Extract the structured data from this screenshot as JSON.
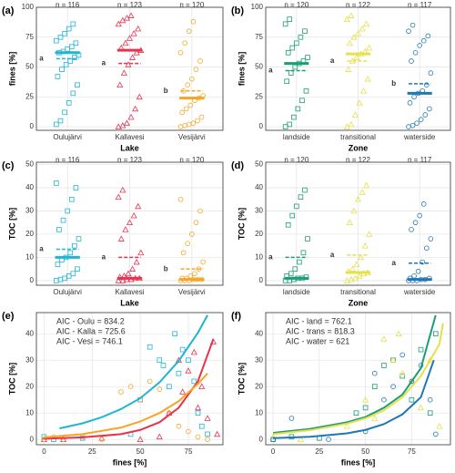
{
  "chart_data": [
    {
      "type": "strip",
      "panel": "(a)",
      "ylabel": "fines [%]",
      "xlabel": "Lake",
      "ylim": [
        -3,
        100
      ],
      "yticks": [
        0,
        25,
        50,
        75,
        100
      ],
      "grid": true,
      "categories": [
        "Oulujärvi",
        "Kallavesi",
        "Vesijärvi"
      ],
      "series": [
        {
          "color": "#1fb5d3",
          "marker": "square",
          "n_label": "n = 116",
          "letter": "a",
          "median": 62,
          "mean": 57,
          "values": [
            2,
            5,
            12,
            20,
            28,
            35,
            42,
            48,
            52,
            55,
            58,
            60,
            62,
            63,
            65,
            67,
            70,
            72,
            75,
            78,
            82,
            86
          ]
        },
        {
          "color": "#e8334f",
          "marker": "triangle",
          "n_label": "n = 123",
          "letter": "a",
          "median": 64,
          "mean": 53,
          "values": [
            0,
            1,
            3,
            8,
            15,
            25,
            35,
            45,
            52,
            58,
            62,
            64,
            66,
            70,
            74,
            78,
            82,
            86,
            89,
            91,
            93
          ]
        },
        {
          "color": "#f5a623",
          "marker": "circle",
          "n_label": "n = 120",
          "letter": "b",
          "median": 24,
          "mean": 30,
          "values": [
            0,
            1,
            2,
            3,
            5,
            8,
            12,
            15,
            18,
            22,
            24,
            26,
            30,
            35,
            40,
            48,
            55,
            62,
            70,
            80,
            88
          ]
        }
      ]
    },
    {
      "type": "strip",
      "panel": "(b)",
      "ylabel": "fines [%]",
      "xlabel": "Zone",
      "ylim": [
        -3,
        100
      ],
      "yticks": [
        0,
        25,
        50,
        75,
        100
      ],
      "grid": true,
      "categories": [
        "landside",
        "transitional",
        "waterside"
      ],
      "series": [
        {
          "color": "#1b9e77",
          "marker": "square",
          "n_label": "n = 120",
          "letter": "a",
          "median": 53,
          "mean": 47,
          "values": [
            0,
            2,
            8,
            15,
            22,
            30,
            38,
            45,
            50,
            53,
            55,
            58,
            62,
            66,
            70,
            75,
            80,
            86,
            90
          ]
        },
        {
          "color": "#e6e04a",
          "marker": "triangle",
          "n_label": "n = 122",
          "letter": "a",
          "median": 61,
          "mean": 55,
          "values": [
            0,
            2,
            10,
            20,
            30,
            40,
            48,
            55,
            58,
            61,
            63,
            66,
            70,
            75,
            78,
            82,
            86,
            90,
            93
          ]
        },
        {
          "color": "#1f78b4",
          "marker": "circle",
          "n_label": "n = 117",
          "letter": "b",
          "median": 28,
          "mean": 36,
          "values": [
            0,
            1,
            3,
            6,
            10,
            15,
            20,
            25,
            28,
            30,
            35,
            45,
            55,
            62,
            68,
            72,
            76,
            80,
            85
          ]
        }
      ]
    },
    {
      "type": "strip",
      "panel": "(c)",
      "ylabel": "TOC [%]",
      "xlabel": "Lake",
      "ylim": [
        -2,
        51
      ],
      "yticks": [
        0,
        10,
        20,
        30,
        40,
        50
      ],
      "grid": true,
      "categories": [
        "Oulujärvi",
        "Kallavesi",
        "Vesijärvi"
      ],
      "series": [
        {
          "color": "#1fb5d3",
          "marker": "square",
          "n_label": "n = 116",
          "letter": "a",
          "median": 10,
          "mean": 13.5,
          "values": [
            0,
            0.5,
            1,
            2,
            3,
            5,
            7,
            9,
            10,
            12,
            15,
            18,
            22,
            26,
            30,
            35,
            40,
            42
          ]
        },
        {
          "color": "#e8334f",
          "marker": "triangle",
          "n_label": "n = 123",
          "letter": "a",
          "median": 1,
          "mean": 10,
          "values": [
            0,
            0,
            0.5,
            0.5,
            1,
            1,
            1.5,
            2,
            3,
            5,
            8,
            12,
            18,
            22,
            25,
            28,
            32,
            36,
            39
          ]
        },
        {
          "color": "#f5a623",
          "marker": "circle",
          "n_label": "n = 120",
          "letter": "b",
          "median": 0.5,
          "mean": 5,
          "values": [
            0,
            0,
            0,
            0.5,
            0.5,
            0.5,
            1,
            1,
            2,
            3,
            5,
            8,
            12,
            16,
            20,
            25,
            30,
            35
          ]
        }
      ]
    },
    {
      "type": "strip",
      "panel": "(d)",
      "ylabel": "TOC [%]",
      "xlabel": "Zone",
      "ylim": [
        -2,
        51
      ],
      "yticks": [
        0,
        10,
        20,
        30,
        40,
        50
      ],
      "grid": true,
      "categories": [
        "landside",
        "transitional",
        "waterside"
      ],
      "series": [
        {
          "color": "#1b9e77",
          "marker": "square",
          "n_label": "n = 120",
          "letter": "a",
          "median": 1,
          "mean": 10,
          "values": [
            0,
            0,
            0.5,
            1,
            1,
            1.5,
            2,
            3,
            5,
            8,
            12,
            18,
            24,
            28,
            32,
            36,
            39
          ]
        },
        {
          "color": "#e6e04a",
          "marker": "triangle",
          "n_label": "n = 122",
          "letter": "a",
          "median": 3.5,
          "mean": 11,
          "values": [
            0,
            0.5,
            1,
            2,
            3,
            3.5,
            4,
            5,
            7,
            10,
            15,
            20,
            25,
            30,
            35,
            38,
            41
          ]
        },
        {
          "color": "#1f78b4",
          "marker": "circle",
          "n_label": "n = 117",
          "letter": "a",
          "median": 0.5,
          "mean": 7.5,
          "values": [
            0,
            0,
            0,
            0.5,
            0.5,
            1,
            1,
            2,
            4,
            8,
            14,
            18,
            22,
            25,
            28,
            33
          ]
        }
      ]
    },
    {
      "type": "scatter",
      "panel": "(e)",
      "ylabel": "TOC [%]",
      "xlabel": "fines [%]",
      "xlim": [
        -4,
        93
      ],
      "xticks": [
        0,
        25,
        50,
        75
      ],
      "ylim": [
        -2,
        48
      ],
      "yticks": [
        0,
        10,
        20,
        30,
        40
      ],
      "grid": true,
      "series": [
        {
          "color": "#1fb5d3",
          "marker": "square",
          "aic": "AIC - Oulu = 834.2",
          "x": [
            0,
            5,
            20,
            45,
            50,
            55,
            60,
            62,
            65,
            68,
            70,
            72,
            75,
            78,
            80,
            82,
            85
          ],
          "values": [
            1,
            0,
            0.5,
            2,
            15,
            35,
            30,
            28,
            20,
            40,
            25,
            34,
            30,
            22,
            10,
            5,
            2
          ],
          "curve_x": [
            8,
            10,
            20,
            30,
            40,
            50,
            60,
            70,
            80,
            85
          ],
          "curve_y": [
            4.2,
            4.5,
            6.1,
            8.4,
            11.5,
            15.6,
            21.6,
            29.7,
            40.4,
            47
          ]
        },
        {
          "color": "#e8334f",
          "marker": "triangle",
          "aic": "AIC - Kalla = 725.6",
          "x": [
            0,
            10,
            30,
            50,
            60,
            65,
            70,
            72,
            75,
            78,
            80,
            82,
            85,
            88,
            90
          ],
          "values": [
            0,
            0,
            0.5,
            0,
            1,
            10,
            30,
            18,
            26,
            33,
            12,
            20,
            8,
            37,
            2
          ],
          "curve_x": [
            0,
            20,
            40,
            50,
            60,
            70,
            80,
            88
          ],
          "curve_y": [
            0.3,
            0.8,
            2,
            3.6,
            6.5,
            12,
            22,
            38
          ]
        },
        {
          "color": "#f5a623",
          "marker": "circle",
          "aic": "AIC - Vesi = 746.1",
          "x": [
            0,
            5,
            10,
            20,
            30,
            40,
            45,
            50,
            55,
            60,
            65,
            70,
            75,
            80,
            85
          ],
          "values": [
            0,
            1,
            0,
            1,
            0,
            18,
            20,
            15,
            22,
            19,
            10,
            5,
            3,
            1,
            0
          ],
          "curve_x": [
            0,
            20,
            40,
            50,
            60,
            70,
            80,
            85
          ],
          "curve_y": [
            0.8,
            2,
            4.5,
            6.8,
            10,
            14.5,
            21,
            25
          ]
        }
      ]
    },
    {
      "type": "scatter",
      "panel": "(f)",
      "ylabel": "TOC [%]",
      "xlabel": "fines [%]",
      "xlim": [
        -4,
        96
      ],
      "xticks": [
        0,
        25,
        50,
        75
      ],
      "ylim": [
        -2,
        48
      ],
      "yticks": [
        0,
        10,
        20,
        30,
        40
      ],
      "grid": true,
      "series": [
        {
          "color": "#1b9e77",
          "marker": "square",
          "aic": "AIC - land = 762.1",
          "x": [
            0,
            10,
            25,
            45,
            50,
            55,
            60,
            65,
            70,
            75,
            80,
            85,
            88
          ],
          "values": [
            0,
            1,
            0.5,
            10,
            12,
            20,
            28,
            30,
            24,
            15,
            34,
            10,
            40
          ],
          "curve_x": [
            0,
            20,
            40,
            50,
            60,
            70,
            80,
            88
          ],
          "curve_y": [
            2.5,
            4,
            6.5,
            8.5,
            12,
            17,
            27,
            47
          ]
        },
        {
          "color": "#e6e04a",
          "marker": "triangle",
          "aic": "AIC - trans = 818.3",
          "x": [
            0,
            15,
            40,
            50,
            55,
            60,
            65,
            68,
            70,
            75,
            80,
            85,
            90
          ],
          "values": [
            1,
            0,
            5,
            15,
            8,
            38,
            30,
            40,
            25,
            22,
            12,
            30,
            5
          ],
          "curve_x": [
            0,
            20,
            40,
            50,
            60,
            70,
            80,
            90,
            92
          ],
          "curve_y": [
            2,
            3.5,
            6,
            8,
            11,
            16,
            24,
            36,
            44
          ]
        },
        {
          "color": "#1f78b4",
          "marker": "circle",
          "aic": "AIC - water = 621",
          "x": [
            0,
            10,
            30,
            50,
            55,
            60,
            65,
            70,
            75,
            80,
            85,
            88
          ],
          "values": [
            0,
            8,
            0,
            3,
            25,
            15,
            20,
            32,
            22,
            28,
            15,
            2
          ],
          "curve_x": [
            0,
            20,
            40,
            50,
            60,
            70,
            80,
            87
          ],
          "curve_y": [
            0.5,
            1,
            2.3,
            3.6,
            5.8,
            9.5,
            16,
            30
          ]
        }
      ]
    }
  ]
}
